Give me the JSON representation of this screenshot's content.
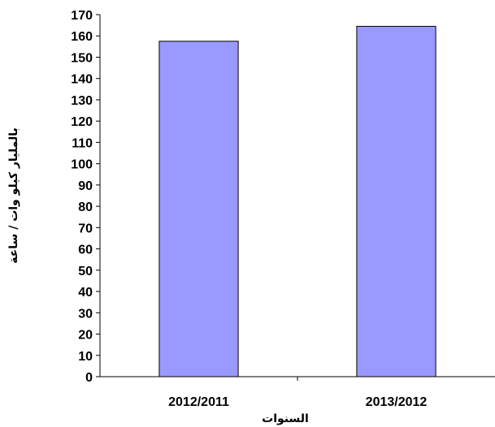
{
  "chart_data": {
    "type": "bar",
    "categories": [
      "2012/2011",
      "2013/2012"
    ],
    "values": [
      157.5,
      164.5
    ],
    "xlabel": "السنوات",
    "ylabel": "بالمليار كيلو وات / ساعة",
    "ylim": [
      0,
      170
    ],
    "yticks": [
      0,
      10,
      20,
      30,
      40,
      50,
      60,
      70,
      80,
      90,
      100,
      110,
      120,
      130,
      140,
      150,
      160,
      170
    ],
    "bar_color": "#9999ff",
    "grid": false,
    "legend": "none"
  }
}
